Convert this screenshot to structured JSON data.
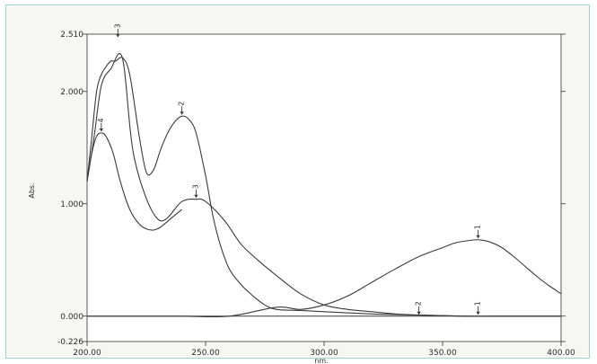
{
  "chart_data": {
    "type": "line",
    "xlabel": "nm.",
    "ylabel": "Abs.",
    "xlim": [
      200.0,
      400.0
    ],
    "ylim": [
      -0.226,
      2.51
    ],
    "x_ticks": [
      "200.00",
      "250.00",
      "300.00",
      "350.00",
      "400.00"
    ],
    "y_ticks": [
      {
        "value": 2.51,
        "label": "2.510"
      },
      {
        "value": 2.0,
        "label": "2.000"
      },
      {
        "value": 1.0,
        "label": "1.000"
      },
      {
        "value": 0.0,
        "label": "0.000"
      },
      {
        "value": -0.226,
        "label": "-0.226"
      }
    ],
    "grid": false,
    "line_color": "#3a3a3a",
    "series": [
      {
        "name": "1",
        "x": [
          200,
          210,
          220,
          240,
          260,
          280,
          290,
          300,
          310,
          320,
          330,
          340,
          350,
          355,
          360,
          365,
          370,
          375,
          380,
          385,
          390,
          395,
          400
        ],
        "y": [
          0,
          0,
          0,
          0,
          0,
          0.08,
          0.06,
          0.1,
          0.18,
          0.3,
          0.42,
          0.53,
          0.61,
          0.65,
          0.67,
          0.68,
          0.66,
          0.61,
          0.53,
          0.44,
          0.35,
          0.27,
          0.2
        ],
        "markers": [
          {
            "x": 365,
            "y": 0.68,
            "label": "1"
          },
          {
            "x": 365,
            "y": 0.0,
            "label": "1"
          }
        ]
      },
      {
        "name": "2",
        "x": [
          200,
          202,
          204,
          206,
          208,
          210,
          212,
          215,
          218,
          222,
          225,
          228,
          231,
          234,
          237,
          240,
          243,
          246,
          250,
          253,
          256,
          260,
          265,
          270,
          275,
          280,
          290,
          300,
          320,
          340,
          360,
          380,
          400
        ],
        "y": [
          1.2,
          1.6,
          2.0,
          2.15,
          2.22,
          2.27,
          2.27,
          2.3,
          2.15,
          1.6,
          1.28,
          1.3,
          1.48,
          1.63,
          1.73,
          1.78,
          1.75,
          1.63,
          1.25,
          0.9,
          0.65,
          0.42,
          0.28,
          0.18,
          0.1,
          0.06,
          0.05,
          0.04,
          0.02,
          0.01,
          0,
          0,
          0
        ],
        "markers": [
          {
            "x": 240,
            "y": 1.78,
            "label": "2"
          },
          {
            "x": 340,
            "y": 0.0,
            "label": "2"
          }
        ]
      },
      {
        "name": "3",
        "x": [
          200,
          203,
          206,
          210,
          215,
          220,
          230,
          240,
          246,
          250,
          258,
          265,
          272,
          280,
          290,
          300,
          310,
          320,
          330,
          340,
          360,
          380,
          400
        ],
        "y": [
          1.2,
          1.6,
          2.05,
          2.2,
          2.29,
          1.4,
          0.86,
          1.02,
          1.04,
          1.02,
          0.85,
          0.64,
          0.5,
          0.36,
          0.2,
          0.1,
          0.06,
          0.04,
          0.02,
          0.01,
          0,
          0,
          0
        ],
        "markers": [
          {
            "x": 213,
            "y": 2.47,
            "label": "3"
          },
          {
            "x": 246,
            "y": 1.04,
            "label": "3"
          }
        ]
      },
      {
        "name": "4",
        "x": [
          200,
          202,
          204,
          206,
          208,
          211,
          214,
          218,
          222,
          226,
          230,
          236,
          240
        ],
        "y": [
          1.2,
          1.45,
          1.6,
          1.63,
          1.6,
          1.45,
          1.2,
          0.95,
          0.82,
          0.77,
          0.78,
          0.88,
          0.95
        ],
        "markers": [
          {
            "x": 206,
            "y": 1.63,
            "label": "4"
          }
        ]
      }
    ]
  }
}
